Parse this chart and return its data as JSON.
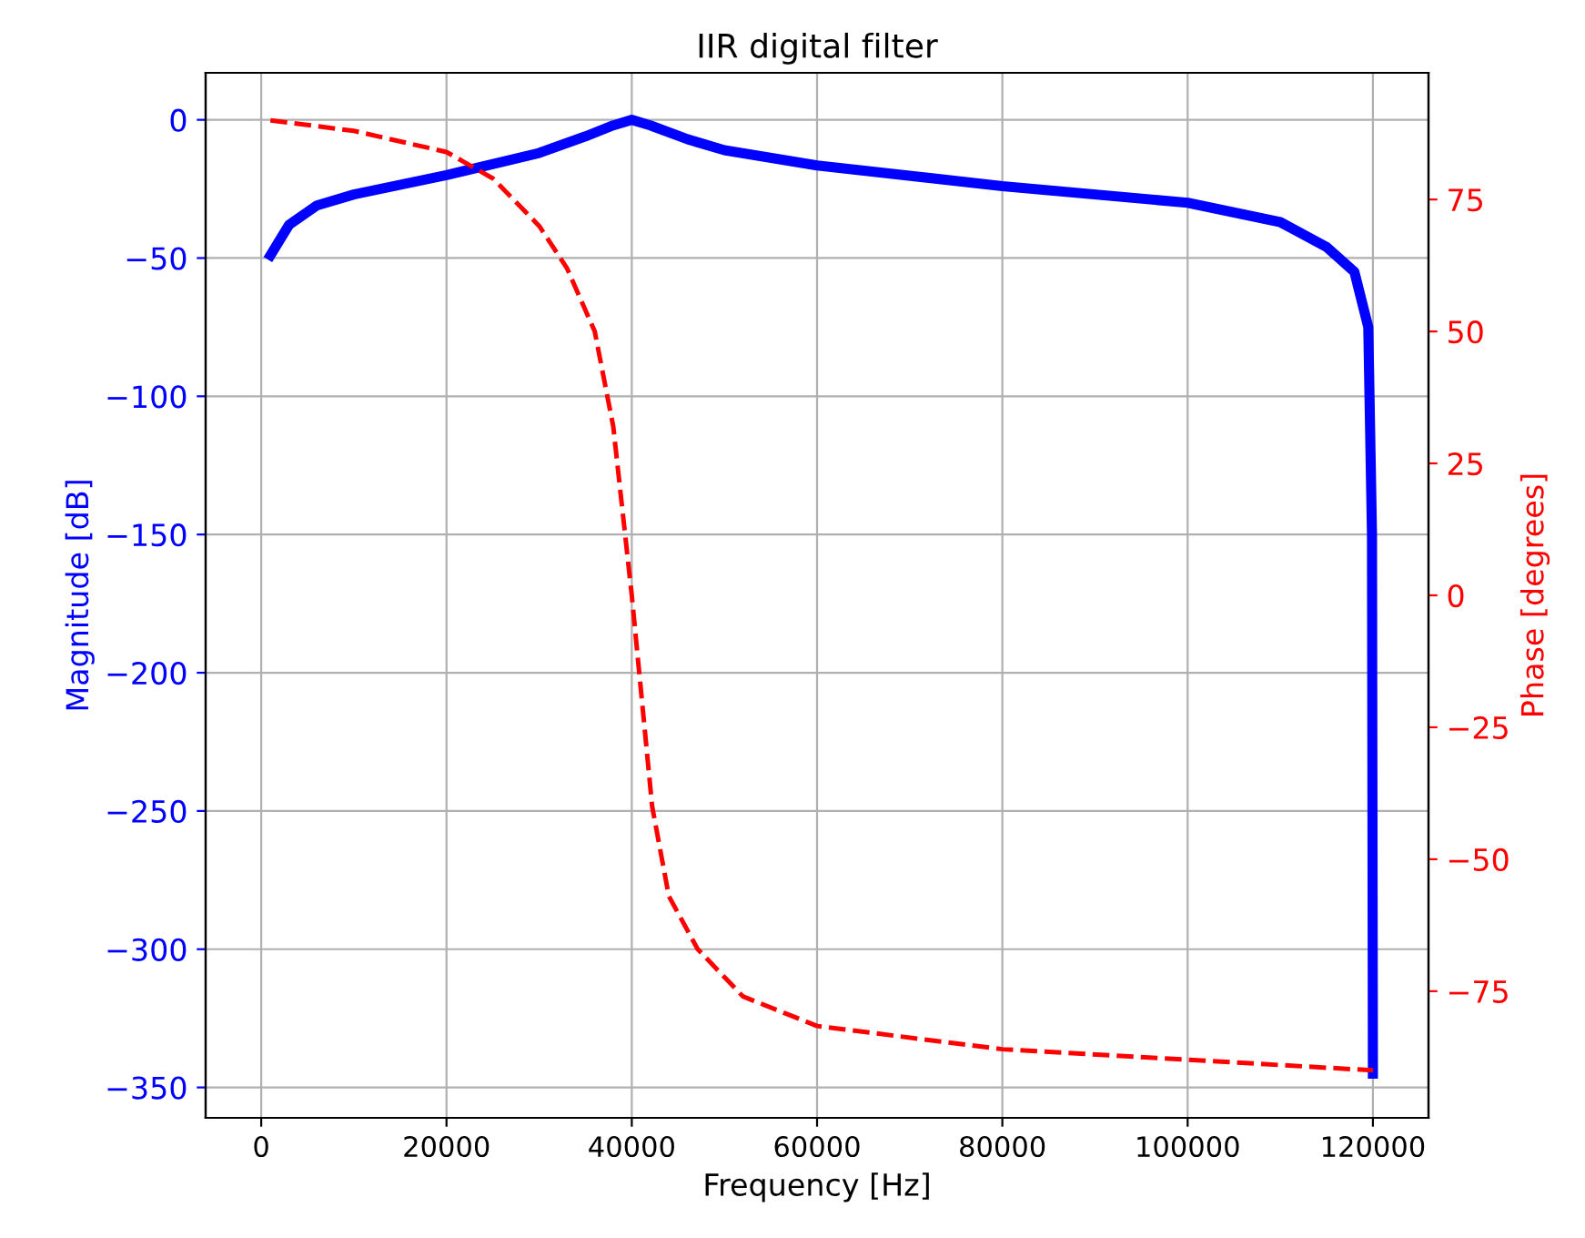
{
  "chart_data": {
    "type": "line",
    "title": "IIR digital filter",
    "xlabel": "Frequency [Hz]",
    "ylabel": "Magnitude [dB]",
    "y2label": "Phase [degrees]",
    "xlim": [
      -6000,
      126000
    ],
    "xticks": [
      0,
      20000,
      40000,
      60000,
      80000,
      100000,
      120000
    ],
    "ylim": [
      -361,
      17
    ],
    "yticks": [
      -350,
      -300,
      -250,
      -200,
      -150,
      -100,
      -50,
      0
    ],
    "y2lim": [
      -99,
      99
    ],
    "y2ticks": [
      -75,
      -50,
      -25,
      0,
      25,
      50,
      75
    ],
    "grid": true,
    "series": [
      {
        "color": "#0000ff",
        "line_style": "solid",
        "x": [
          1000,
          3000,
          6000,
          10000,
          20000,
          30000,
          35000,
          38000,
          40000,
          42000,
          46000,
          50000,
          60000,
          80000,
          100000,
          110000,
          115000,
          118000,
          119500,
          119900,
          120000
        ],
        "values": [
          -49,
          -38,
          -31,
          -27,
          -20,
          -12,
          -6,
          -2,
          0,
          -2,
          -7,
          -11,
          -16.5,
          -24,
          -30,
          -37,
          -46,
          -55,
          -75,
          -150,
          -345
        ]
      },
      {
        "color": "#ff0000",
        "line_style": "dashed",
        "axis": "y2",
        "x": [
          1000,
          10000,
          20000,
          25000,
          30000,
          33000,
          36000,
          38000,
          40000,
          42200,
          44000,
          47100,
          52000,
          60000,
          80000,
          100000,
          120000
        ],
        "values": [
          90,
          88,
          84,
          79,
          70,
          62,
          50,
          32,
          0,
          -40,
          -57,
          -67,
          -76,
          -81.6,
          -86,
          -88,
          -90
        ]
      }
    ]
  }
}
